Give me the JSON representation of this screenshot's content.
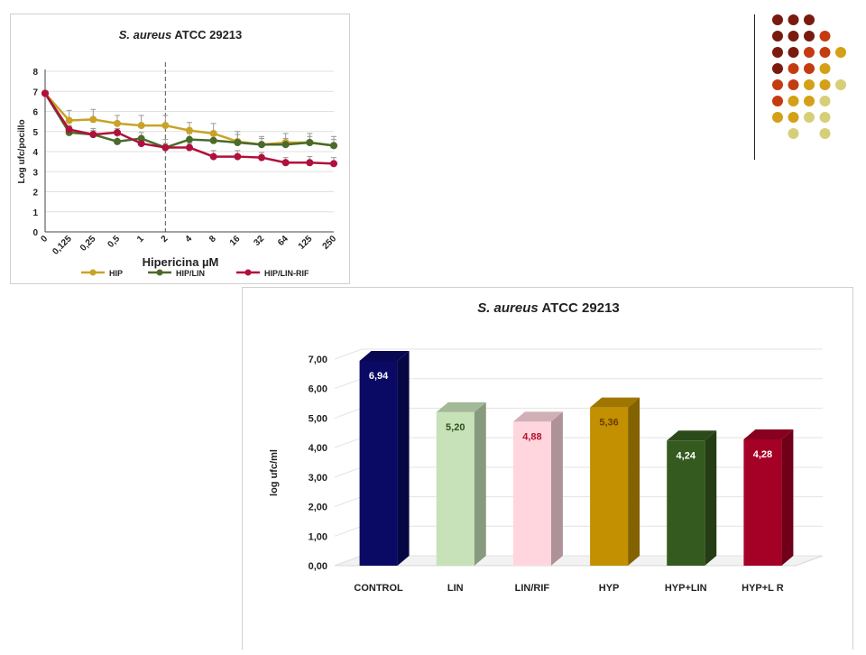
{
  "chart_data": [
    {
      "type": "line",
      "title_italic": "S. aureus",
      "title_rest": "ATCC 29213",
      "xlabel": "Hipericina µM",
      "ylabel": "Log ufc/pocillo",
      "categories": [
        "0",
        "0,125",
        "0,25",
        "0,5",
        "1",
        "2",
        "4",
        "8",
        "16",
        "32",
        "64",
        "125",
        "250"
      ],
      "ylim": [
        0,
        8
      ],
      "yticks": [
        "0",
        "1",
        "2",
        "3",
        "4",
        "5",
        "6",
        "7",
        "8"
      ],
      "grid": true,
      "legend_position": "bottom",
      "reference_line_at": "2",
      "series": [
        {
          "name": "HIP",
          "color": "#c9a227",
          "values": [
            6.9,
            5.55,
            5.6,
            5.4,
            5.3,
            5.3,
            5.05,
            4.9,
            4.5,
            4.35,
            4.45,
            4.45,
            4.3
          ],
          "errors": [
            0,
            0.5,
            0.5,
            0.4,
            0.5,
            0.5,
            0.4,
            0.5,
            0.5,
            0.4,
            0.45,
            0.45,
            0.45
          ]
        },
        {
          "name": "HIP/LIN",
          "color": "#4a6b2a",
          "values": [
            6.9,
            4.95,
            4.85,
            4.5,
            4.65,
            4.2,
            4.6,
            4.55,
            4.45,
            4.35,
            4.35,
            4.45,
            4.3
          ],
          "errors": [
            0,
            0.3,
            0.3,
            0.3,
            0.3,
            0.4,
            0.3,
            0.4,
            0.4,
            0.3,
            0.3,
            0.3,
            0.3
          ]
        },
        {
          "name": "HIP/LIN-RIF",
          "color": "#b0103c",
          "values": [
            6.9,
            5.1,
            4.85,
            4.95,
            4.4,
            4.2,
            4.2,
            3.75,
            3.75,
            3.7,
            3.45,
            3.45,
            3.4
          ],
          "errors": [
            0,
            0.2,
            0.2,
            0.2,
            0.2,
            0.2,
            0.2,
            0.3,
            0.3,
            0.25,
            0.25,
            0.3,
            0.3
          ]
        }
      ]
    },
    {
      "type": "bar",
      "title_italic": "S. aureus",
      "title_rest": "ATCC 29213",
      "ylabel": "log ufc/ml",
      "categories": [
        "CONTROL",
        "LIN",
        "LIN/RIF",
        "HYP",
        "HYP+LIN",
        "HYP+L R"
      ],
      "values": [
        6.94,
        5.2,
        4.88,
        5.36,
        4.24,
        4.28
      ],
      "value_labels": [
        "6,94",
        "5,20",
        "4,88",
        "5,36",
        "4,24",
        "4,28"
      ],
      "colors": [
        "#0a0a64",
        "#c7e2b8",
        "#ffd6de",
        "#c29000",
        "#355a1f",
        "#a50026"
      ],
      "label_colors": [
        "#ffffff",
        "#2f4f1f",
        "#b5122e",
        "#6b3e00",
        "#ffffff",
        "#ffffff"
      ],
      "ylim": [
        0,
        7
      ],
      "yticks": [
        "0,00",
        "1,00",
        "2,00",
        "3,00",
        "4,00",
        "5,00",
        "6,00",
        "7,00"
      ],
      "grid": true
    }
  ],
  "decoration": {
    "dot_colors": [
      "#7a1a0e",
      "#c43b12",
      "#d4a017",
      "#d6cf78"
    ]
  }
}
